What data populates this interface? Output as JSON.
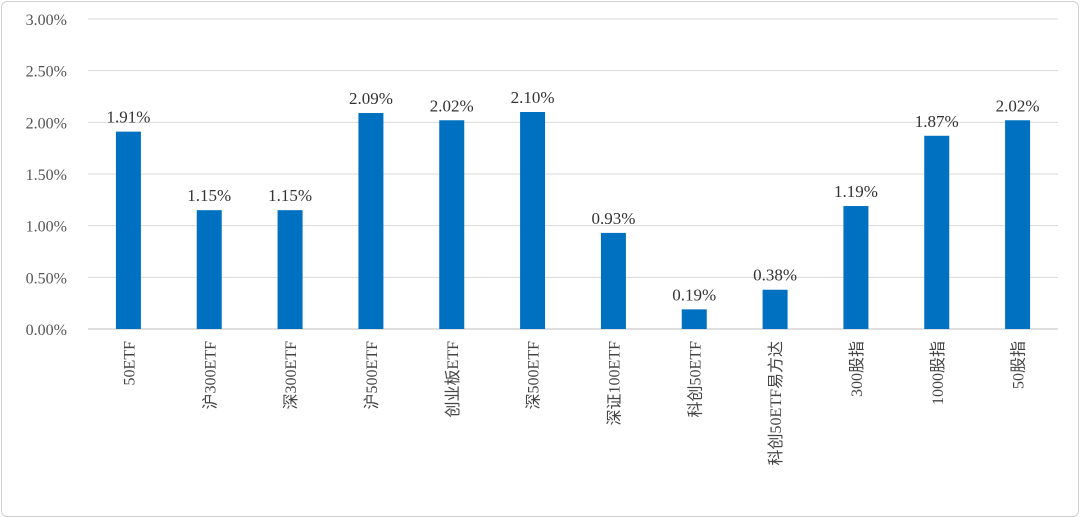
{
  "chart_data": {
    "type": "bar",
    "categories": [
      "50ETF",
      "沪300ETF",
      "深300ETF",
      "沪500ETF",
      "创业板ETF",
      "深500ETF",
      "深证100ETF",
      "科创50ETF",
      "科创50ETF易方达",
      "300股指",
      "1000股指",
      "50股指"
    ],
    "values": [
      1.91,
      1.15,
      1.15,
      2.09,
      2.02,
      2.1,
      0.93,
      0.19,
      0.38,
      1.19,
      1.87,
      2.02
    ],
    "data_labels": [
      "1.91%",
      "1.15%",
      "1.15%",
      "2.09%",
      "2.02%",
      "2.10%",
      "0.93%",
      "0.19%",
      "0.38%",
      "1.19%",
      "1.87%",
      "2.02%"
    ],
    "yticks": [
      "0.00%",
      "0.50%",
      "1.00%",
      "1.50%",
      "2.00%",
      "2.50%",
      "3.00%"
    ],
    "ylim": [
      0,
      3.0
    ],
    "grid": true,
    "bar_color": "#0070C0",
    "grid_color": "#d9d9d9",
    "title": "",
    "xlabel": "",
    "ylabel": ""
  }
}
